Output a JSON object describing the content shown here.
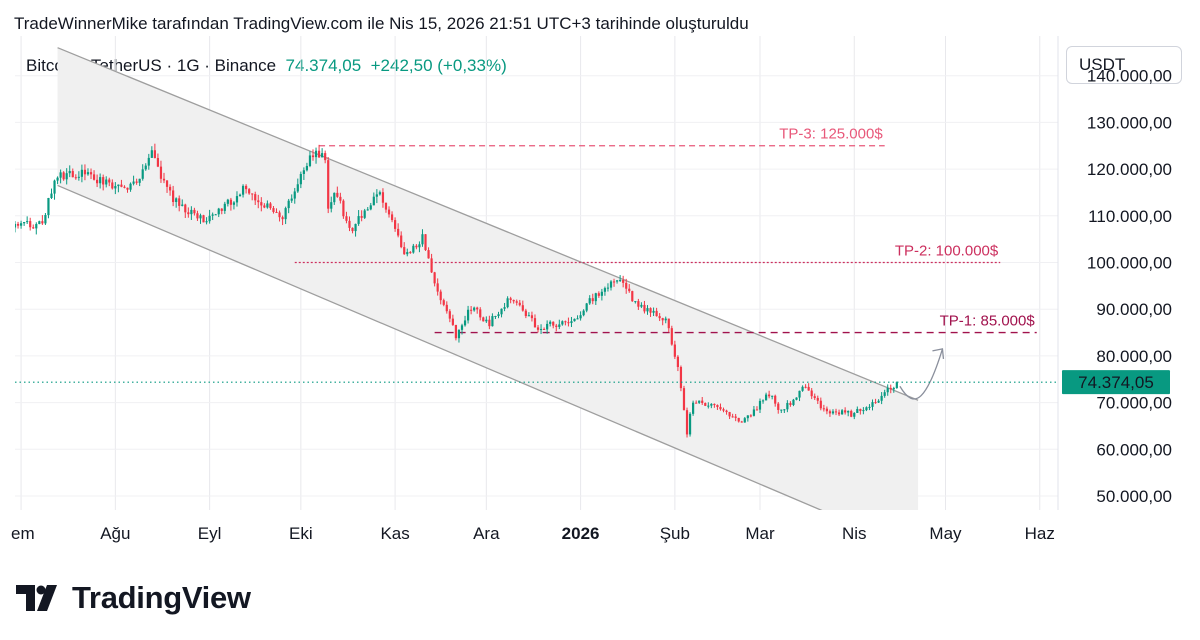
{
  "caption": "TradeWinnerMike tarafından TradingView.com ile Nis 15, 2026 21:51 UTC+3 tarihinde oluşturuldu",
  "symbol": {
    "name": "Bitcoin / TetherUS · 1G · Binance",
    "price": "74.374,05",
    "change": "+242,50 (+0,33%)"
  },
  "currency": "USDT",
  "brand": "TradingView",
  "colors": {
    "up": "#089981",
    "down": "#f23645",
    "tp3": "#e8587a",
    "tp2": "#cc2f5e",
    "tp1": "#a1124d",
    "channel_fill": "#f0f0f0",
    "channel_line": "#9e9e9e"
  },
  "chart_data": {
    "type": "candlestick",
    "y_axis": {
      "ticks": [
        140000,
        130000,
        120000,
        110000,
        100000,
        90000,
        80000,
        70000,
        60000,
        50000
      ],
      "tick_labels": [
        "140.000,00",
        "130.000,00",
        "120.000,00",
        "110.000,00",
        "100.000,00",
        "90.000,00",
        "80.000,00",
        "70.000,00",
        "60.000,00",
        "50.000,00"
      ],
      "ylim": [
        47000,
        148500
      ]
    },
    "x_axis": {
      "tick_labels": [
        "em",
        "Ağu",
        "Eyl",
        "Eki",
        "Kas",
        "Ara",
        "2026",
        "Şub",
        "Mar",
        "Nis",
        "May",
        "Haz"
      ],
      "tick_dates": [
        "2025-07-01",
        "2025-08-01",
        "2025-09-01",
        "2025-10-01",
        "2025-11-01",
        "2025-12-01",
        "2026-01-01",
        "2026-02-01",
        "2026-03-01",
        "2026-04-01",
        "2026-05-01",
        "2026-06-01"
      ],
      "bold_label": "2026",
      "xlim": [
        "2025-06-29",
        "2026-06-07"
      ]
    },
    "last_price": 74374.05,
    "last_price_label": "74.374,05",
    "price_anchors": [
      [
        "2025-06-29",
        107500
      ],
      [
        "2025-07-08",
        108500
      ],
      [
        "2025-07-12",
        117500
      ],
      [
        "2025-07-16",
        119000
      ],
      [
        "2025-07-22",
        119500
      ],
      [
        "2025-07-31",
        116000
      ],
      [
        "2025-08-07",
        116500
      ],
      [
        "2025-08-13",
        123000
      ],
      [
        "2025-08-16",
        118000
      ],
      [
        "2025-08-20",
        113500
      ],
      [
        "2025-08-31",
        108500
      ],
      [
        "2025-09-05",
        111500
      ],
      [
        "2025-09-12",
        115500
      ],
      [
        "2025-09-25",
        109500
      ],
      [
        "2025-10-02",
        120000
      ],
      [
        "2025-10-06",
        124500
      ],
      [
        "2025-10-09",
        121500
      ],
      [
        "2025-10-10",
        112500
      ],
      [
        "2025-10-13",
        115000
      ],
      [
        "2025-10-17",
        106500
      ],
      [
        "2025-10-27",
        115000
      ],
      [
        "2025-10-31",
        109500
      ],
      [
        "2025-11-04",
        101500
      ],
      [
        "2025-11-10",
        105500
      ],
      [
        "2025-11-14",
        95500
      ],
      [
        "2025-11-21",
        84500
      ],
      [
        "2025-11-26",
        90500
      ],
      [
        "2025-12-02",
        87000
      ],
      [
        "2025-12-09",
        92500
      ],
      [
        "2025-12-18",
        86000
      ],
      [
        "2025-12-31",
        88000
      ],
      [
        "2026-01-05",
        92500
      ],
      [
        "2026-01-14",
        96500
      ],
      [
        "2026-01-20",
        90500
      ],
      [
        "2026-01-29",
        88000
      ],
      [
        "2026-02-02",
        77000
      ],
      [
        "2026-02-05",
        63500
      ],
      [
        "2026-02-07",
        70500
      ],
      [
        "2026-02-16",
        68500
      ],
      [
        "2026-02-23",
        65500
      ],
      [
        "2026-03-04",
        72000
      ],
      [
        "2026-03-08",
        68000
      ],
      [
        "2026-03-16",
        73500
      ],
      [
        "2026-03-22",
        68500
      ],
      [
        "2026-03-31",
        67500
      ],
      [
        "2026-04-06",
        69500
      ],
      [
        "2026-04-12",
        72500
      ],
      [
        "2026-04-15",
        74374.05
      ]
    ],
    "annotations": {
      "channel": {
        "upper": [
          [
            "2025-07-13",
            146000
          ],
          [
            "2026-04-22",
            70500
          ]
        ],
        "lower": [
          [
            "2025-07-13",
            116500
          ],
          [
            "2026-03-21",
            47000
          ]
        ],
        "x_range": [
          "2025-07-13",
          "2026-04-22"
        ]
      },
      "levels": [
        {
          "label": "TP-3: 125.000$",
          "value": 125000,
          "x_from": "2025-10-07",
          "x_to": "2026-04-11"
        },
        {
          "label": "TP-2: 100.000$",
          "value": 100000,
          "x_from": "2025-09-29",
          "x_to": "2026-05-19"
        },
        {
          "label": "TP-1: 85.000$",
          "value": 85000,
          "x_from": "2025-11-14",
          "x_to": "2026-05-31"
        }
      ],
      "forecast_path": [
        [
          "2026-04-16",
          73500
        ],
        [
          "2026-04-23",
          71500
        ],
        [
          "2026-04-30",
          81500
        ]
      ]
    }
  }
}
